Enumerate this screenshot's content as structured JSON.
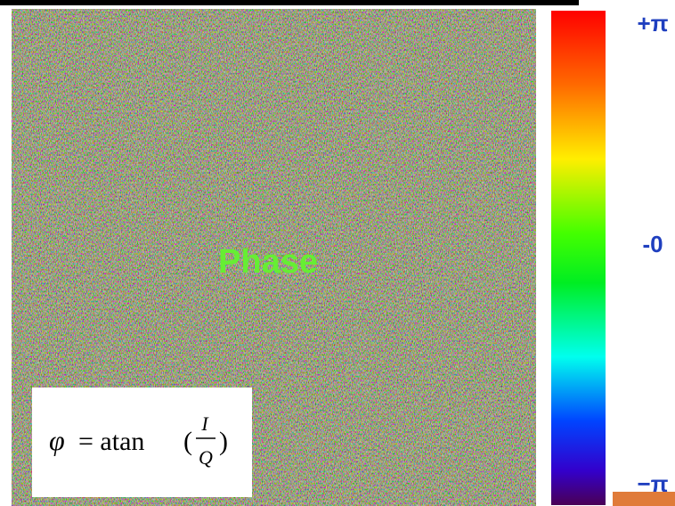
{
  "image_label": "Phase",
  "colorbar": {
    "top_label": "+π",
    "middle_label": "-0",
    "bottom_label": "−π"
  },
  "formula": {
    "lhs": "φ",
    "operator": "= atan",
    "open": "(",
    "numerator": "I",
    "denominator": "Q",
    "close": ")"
  }
}
